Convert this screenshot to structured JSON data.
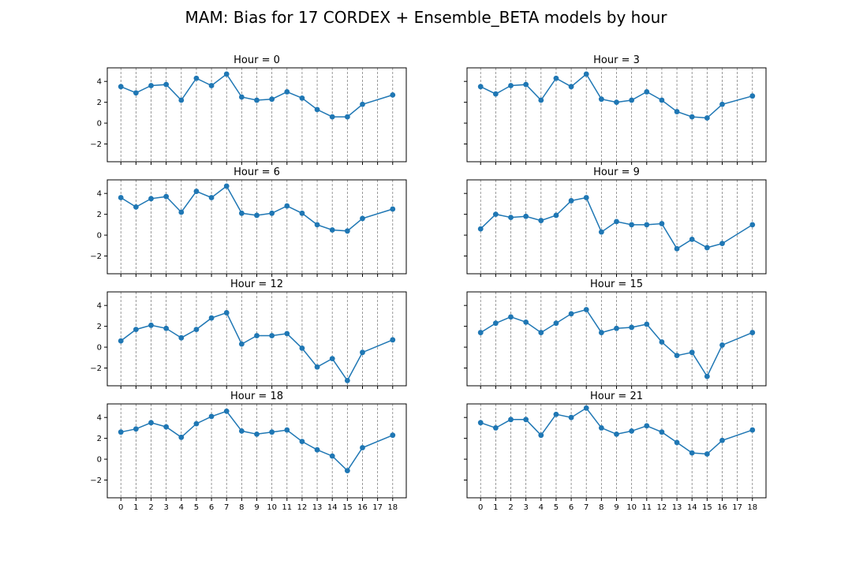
{
  "figure": {
    "title": "MAM: Bias for 17 CORDEX + Ensemble_BETA models by hour"
  },
  "colors": {
    "series": "#1f77b4",
    "gridline": "#808080",
    "axis": "#000000",
    "text": "#000000"
  },
  "chart_data": [
    {
      "type": "line",
      "title": "Hour = 0",
      "x": [
        0,
        1,
        2,
        3,
        4,
        5,
        6,
        7,
        8,
        9,
        10,
        11,
        12,
        13,
        14,
        15,
        16,
        18
      ],
      "values": [
        3.5,
        2.9,
        3.6,
        3.7,
        2.2,
        4.3,
        3.6,
        4.7,
        2.5,
        2.2,
        2.3,
        3.0,
        2.4,
        1.3,
        0.6,
        0.6,
        1.8,
        2.7
      ],
      "xticks": [
        0,
        1,
        2,
        3,
        4,
        5,
        6,
        7,
        8,
        9,
        10,
        11,
        12,
        13,
        14,
        15,
        16,
        17,
        18
      ],
      "xlim": [
        -0.9,
        18.9
      ],
      "yticks": [
        -2,
        0,
        2,
        4
      ],
      "ylim": [
        -3.7,
        5.3
      ],
      "grid": "vertical dashed",
      "marker": "circle"
    },
    {
      "type": "line",
      "title": "Hour = 3",
      "x": [
        0,
        1,
        2,
        3,
        4,
        5,
        6,
        7,
        8,
        9,
        10,
        11,
        12,
        13,
        14,
        15,
        16,
        18
      ],
      "values": [
        3.5,
        2.8,
        3.6,
        3.7,
        2.2,
        4.3,
        3.5,
        4.7,
        2.3,
        2.0,
        2.2,
        3.0,
        2.2,
        1.1,
        0.6,
        0.5,
        1.8,
        2.6
      ],
      "xticks": [
        0,
        1,
        2,
        3,
        4,
        5,
        6,
        7,
        8,
        9,
        10,
        11,
        12,
        13,
        14,
        15,
        16,
        17,
        18
      ],
      "xlim": [
        -0.9,
        18.9
      ],
      "yticks": [
        -2,
        0,
        2,
        4
      ],
      "ylim": [
        -3.7,
        5.3
      ],
      "grid": "vertical dashed",
      "marker": "circle"
    },
    {
      "type": "line",
      "title": "Hour = 6",
      "x": [
        0,
        1,
        2,
        3,
        4,
        5,
        6,
        7,
        8,
        9,
        10,
        11,
        12,
        13,
        14,
        15,
        16,
        18
      ],
      "values": [
        3.6,
        2.7,
        3.5,
        3.7,
        2.2,
        4.2,
        3.6,
        4.7,
        2.1,
        1.9,
        2.1,
        2.8,
        2.1,
        1.0,
        0.5,
        0.4,
        1.6,
        2.5
      ],
      "xticks": [
        0,
        1,
        2,
        3,
        4,
        5,
        6,
        7,
        8,
        9,
        10,
        11,
        12,
        13,
        14,
        15,
        16,
        17,
        18
      ],
      "xlim": [
        -0.9,
        18.9
      ],
      "yticks": [
        -2,
        0,
        2,
        4
      ],
      "ylim": [
        -3.7,
        5.3
      ],
      "grid": "vertical dashed",
      "marker": "circle"
    },
    {
      "type": "line",
      "title": "Hour = 9",
      "x": [
        0,
        1,
        2,
        3,
        4,
        5,
        6,
        7,
        8,
        9,
        10,
        11,
        12,
        13,
        14,
        15,
        16,
        18
      ],
      "values": [
        0.6,
        2.0,
        1.7,
        1.8,
        1.4,
        1.9,
        3.3,
        3.6,
        0.3,
        1.3,
        1.0,
        1.0,
        1.1,
        -1.3,
        -0.4,
        -1.2,
        -0.8,
        1.0
      ],
      "xticks": [
        0,
        1,
        2,
        3,
        4,
        5,
        6,
        7,
        8,
        9,
        10,
        11,
        12,
        13,
        14,
        15,
        16,
        17,
        18
      ],
      "xlim": [
        -0.9,
        18.9
      ],
      "yticks": [
        -2,
        0,
        2,
        4
      ],
      "ylim": [
        -3.7,
        5.3
      ],
      "grid": "vertical dashed",
      "marker": "circle"
    },
    {
      "type": "line",
      "title": "Hour = 12",
      "x": [
        0,
        1,
        2,
        3,
        4,
        5,
        6,
        7,
        8,
        9,
        10,
        11,
        12,
        13,
        14,
        15,
        16,
        18
      ],
      "values": [
        0.6,
        1.7,
        2.1,
        1.8,
        0.9,
        1.7,
        2.8,
        3.3,
        0.3,
        1.1,
        1.1,
        1.3,
        -0.1,
        -1.9,
        -1.1,
        -3.2,
        -0.5,
        0.7
      ],
      "xticks": [
        0,
        1,
        2,
        3,
        4,
        5,
        6,
        7,
        8,
        9,
        10,
        11,
        12,
        13,
        14,
        15,
        16,
        17,
        18
      ],
      "xlim": [
        -0.9,
        18.9
      ],
      "yticks": [
        -2,
        0,
        2,
        4
      ],
      "ylim": [
        -3.7,
        5.3
      ],
      "grid": "vertical dashed",
      "marker": "circle"
    },
    {
      "type": "line",
      "title": "Hour = 15",
      "x": [
        0,
        1,
        2,
        3,
        4,
        5,
        6,
        7,
        8,
        9,
        10,
        11,
        12,
        13,
        14,
        15,
        16,
        18
      ],
      "values": [
        1.4,
        2.3,
        2.9,
        2.4,
        1.4,
        2.3,
        3.2,
        3.6,
        1.4,
        1.8,
        1.9,
        2.2,
        0.5,
        -0.8,
        -0.5,
        -2.8,
        0.2,
        1.4
      ],
      "xticks": [
        0,
        1,
        2,
        3,
        4,
        5,
        6,
        7,
        8,
        9,
        10,
        11,
        12,
        13,
        14,
        15,
        16,
        17,
        18
      ],
      "xlim": [
        -0.9,
        18.9
      ],
      "yticks": [
        -2,
        0,
        2,
        4
      ],
      "ylim": [
        -3.7,
        5.3
      ],
      "grid": "vertical dashed",
      "marker": "circle"
    },
    {
      "type": "line",
      "title": "Hour = 18",
      "x": [
        0,
        1,
        2,
        3,
        4,
        5,
        6,
        7,
        8,
        9,
        10,
        11,
        12,
        13,
        14,
        15,
        16,
        18
      ],
      "values": [
        2.6,
        2.9,
        3.5,
        3.1,
        2.1,
        3.4,
        4.1,
        4.6,
        2.7,
        2.4,
        2.6,
        2.8,
        1.7,
        0.9,
        0.3,
        -1.1,
        1.1,
        2.3
      ],
      "xticks": [
        0,
        1,
        2,
        3,
        4,
        5,
        6,
        7,
        8,
        9,
        10,
        11,
        12,
        13,
        14,
        15,
        16,
        17,
        18
      ],
      "xlim": [
        -0.9,
        18.9
      ],
      "yticks": [
        -2,
        0,
        2,
        4
      ],
      "ylim": [
        -3.7,
        5.3
      ],
      "grid": "vertical dashed",
      "marker": "circle"
    },
    {
      "type": "line",
      "title": "Hour = 21",
      "x": [
        0,
        1,
        2,
        3,
        4,
        5,
        6,
        7,
        8,
        9,
        10,
        11,
        12,
        13,
        14,
        15,
        16,
        18
      ],
      "values": [
        3.5,
        3.0,
        3.8,
        3.8,
        2.3,
        4.3,
        4.0,
        4.9,
        3.0,
        2.4,
        2.7,
        3.2,
        2.6,
        1.6,
        0.6,
        0.5,
        1.8,
        2.8
      ],
      "xticks": [
        0,
        1,
        2,
        3,
        4,
        5,
        6,
        7,
        8,
        9,
        10,
        11,
        12,
        13,
        14,
        15,
        16,
        17,
        18
      ],
      "xlim": [
        -0.9,
        18.9
      ],
      "yticks": [
        -2,
        0,
        2,
        4
      ],
      "ylim": [
        -3.7,
        5.3
      ],
      "grid": "vertical dashed",
      "marker": "circle"
    }
  ]
}
